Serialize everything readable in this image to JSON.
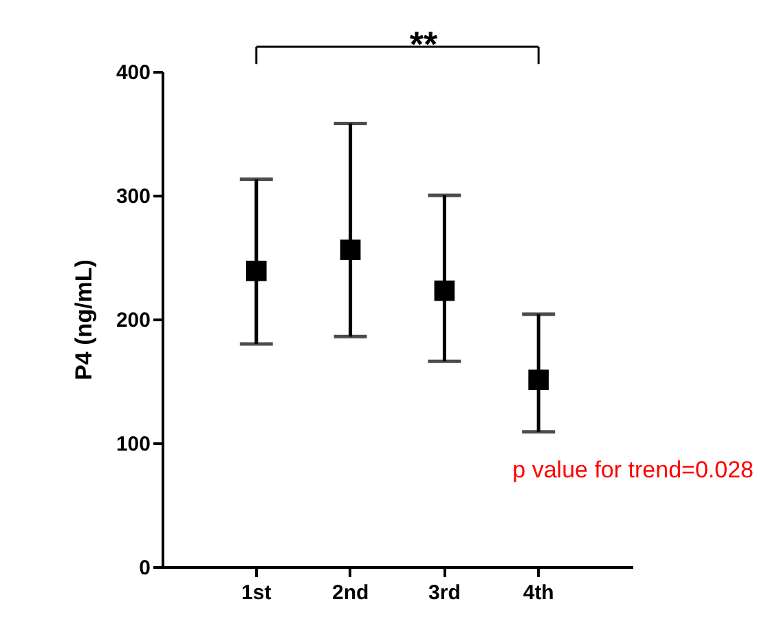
{
  "chart_data": {
    "type": "scatter",
    "ylabel": "P4 (ng/mL)",
    "categories": [
      "1st",
      "2nd",
      "3rd",
      "4th"
    ],
    "series": [
      {
        "color": "#000000",
        "values": [
          239,
          256,
          223,
          151
        ],
        "errors": [
          [
            180,
            313
          ],
          [
            186,
            358
          ],
          [
            166,
            300
          ],
          [
            109,
            204
          ]
        ]
      }
    ],
    "ylim": [
      0,
      400
    ],
    "yticks": [
      0,
      100,
      200,
      300,
      400
    ],
    "grid": false,
    "marker": "square",
    "annotations": [
      "**",
      "p value  for trend=0.028"
    ]
  }
}
